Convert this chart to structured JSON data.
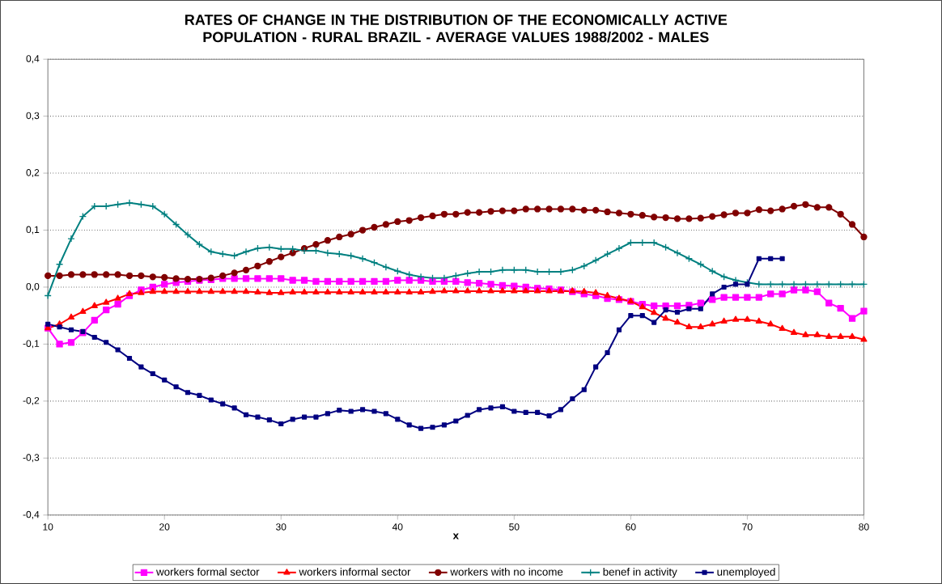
{
  "chart_data": {
    "type": "line",
    "title": "RATES OF CHANGE IN THE DISTRIBUTION OF THE ECONOMICALLY ACTIVE POPULATION - RURAL BRAZIL -  AVERAGE VALUES 1988/2002 - MALES",
    "xlabel": "x",
    "x": [
      10,
      11,
      12,
      13,
      14,
      15,
      16,
      17,
      18,
      19,
      20,
      21,
      22,
      23,
      24,
      25,
      26,
      27,
      28,
      29,
      30,
      31,
      32,
      33,
      34,
      35,
      36,
      37,
      38,
      39,
      40,
      41,
      42,
      43,
      44,
      45,
      46,
      47,
      48,
      49,
      50,
      51,
      52,
      53,
      54,
      55,
      56,
      57,
      58,
      59,
      60,
      61,
      62,
      63,
      64,
      65,
      66,
      67,
      68,
      69,
      70,
      71,
      72,
      73,
      74,
      75,
      76,
      77,
      78,
      79,
      80
    ],
    "xlim": [
      10,
      80
    ],
    "xticks": [
      10,
      20,
      30,
      40,
      50,
      60,
      70,
      80
    ],
    "ylim": [
      -0.4,
      0.4
    ],
    "yticks": [
      {
        "value": -0.4,
        "label": "-0,4"
      },
      {
        "value": -0.3,
        "label": "-0,3"
      },
      {
        "value": -0.2,
        "label": "-0,2"
      },
      {
        "value": -0.1,
        "label": "-0,1"
      },
      {
        "value": 0,
        "label": "0,0"
      },
      {
        "value": 0.1,
        "label": "0,1"
      },
      {
        "value": 0.2,
        "label": "0,2"
      },
      {
        "value": 0.3,
        "label": "0,3"
      },
      {
        "value": 0.4,
        "label": "0,4"
      }
    ],
    "grid": "y",
    "legend": "bottom",
    "series": [
      {
        "name": "workers formal sector",
        "color": "#ff00ff",
        "marker": "square",
        "values": [
          -0.072,
          -0.1,
          -0.097,
          -0.08,
          -0.058,
          -0.04,
          -0.03,
          -0.015,
          -0.005,
          0.0,
          0.005,
          0.008,
          0.01,
          0.012,
          0.013,
          0.015,
          0.015,
          0.015,
          0.015,
          0.015,
          0.015,
          0.012,
          0.012,
          0.01,
          0.01,
          0.01,
          0.01,
          0.01,
          0.01,
          0.01,
          0.012,
          0.012,
          0.012,
          0.01,
          0.01,
          0.01,
          0.008,
          0.007,
          0.005,
          0.003,
          0.002,
          0.0,
          -0.002,
          -0.003,
          -0.005,
          -0.008,
          -0.012,
          -0.015,
          -0.02,
          -0.022,
          -0.025,
          -0.03,
          -0.033,
          -0.033,
          -0.033,
          -0.032,
          -0.028,
          -0.022,
          -0.018,
          -0.018,
          -0.018,
          -0.018,
          -0.012,
          -0.012,
          -0.005,
          -0.005,
          -0.008,
          -0.028,
          -0.037,
          -0.055,
          -0.042
        ]
      },
      {
        "name": "workers informal sector",
        "color": "#ff0000",
        "marker": "triangle",
        "values": [
          -0.072,
          -0.065,
          -0.053,
          -0.043,
          -0.033,
          -0.027,
          -0.02,
          -0.012,
          -0.01,
          -0.008,
          -0.008,
          -0.008,
          -0.008,
          -0.008,
          -0.008,
          -0.008,
          -0.008,
          -0.008,
          -0.009,
          -0.01,
          -0.01,
          -0.009,
          -0.009,
          -0.009,
          -0.009,
          -0.009,
          -0.009,
          -0.009,
          -0.009,
          -0.009,
          -0.009,
          -0.009,
          -0.009,
          -0.008,
          -0.007,
          -0.007,
          -0.007,
          -0.007,
          -0.007,
          -0.007,
          -0.007,
          -0.007,
          -0.007,
          -0.007,
          -0.007,
          -0.007,
          -0.008,
          -0.01,
          -0.015,
          -0.02,
          -0.025,
          -0.035,
          -0.045,
          -0.055,
          -0.062,
          -0.07,
          -0.07,
          -0.065,
          -0.06,
          -0.057,
          -0.057,
          -0.06,
          -0.065,
          -0.073,
          -0.08,
          -0.084,
          -0.084,
          -0.087,
          -0.087,
          -0.087,
          -0.092
        ]
      },
      {
        "name": "workers with no income",
        "color": "#800000",
        "marker": "circle",
        "values": [
          0.02,
          0.02,
          0.022,
          0.022,
          0.022,
          0.022,
          0.022,
          0.02,
          0.02,
          0.018,
          0.017,
          0.015,
          0.014,
          0.014,
          0.016,
          0.02,
          0.025,
          0.03,
          0.037,
          0.045,
          0.053,
          0.06,
          0.068,
          0.075,
          0.082,
          0.088,
          0.093,
          0.1,
          0.105,
          0.11,
          0.115,
          0.117,
          0.122,
          0.125,
          0.128,
          0.128,
          0.131,
          0.131,
          0.133,
          0.134,
          0.134,
          0.137,
          0.137,
          0.137,
          0.137,
          0.137,
          0.135,
          0.135,
          0.132,
          0.13,
          0.128,
          0.126,
          0.123,
          0.122,
          0.12,
          0.12,
          0.121,
          0.124,
          0.127,
          0.13,
          0.13,
          0.136,
          0.134,
          0.137,
          0.142,
          0.145,
          0.14,
          0.14,
          0.128,
          0.11,
          0.088
        ]
      },
      {
        "name": "benef in activity",
        "color": "#008080",
        "marker": "cross",
        "values": [
          -0.015,
          0.04,
          0.085,
          0.124,
          0.142,
          0.142,
          0.145,
          0.148,
          0.145,
          0.142,
          0.128,
          0.11,
          0.092,
          0.075,
          0.062,
          0.058,
          0.055,
          0.062,
          0.068,
          0.07,
          0.067,
          0.067,
          0.064,
          0.064,
          0.06,
          0.058,
          0.055,
          0.05,
          0.043,
          0.035,
          0.028,
          0.022,
          0.018,
          0.016,
          0.016,
          0.02,
          0.024,
          0.027,
          0.027,
          0.03,
          0.03,
          0.03,
          0.027,
          0.027,
          0.027,
          0.03,
          0.037,
          0.047,
          0.058,
          0.068,
          0.078,
          0.078,
          0.078,
          0.07,
          0.06,
          0.05,
          0.04,
          0.028,
          0.018,
          0.012,
          0.008,
          0.005,
          0.005,
          0.005,
          0.005,
          0.005,
          0.005,
          0.005,
          0.005,
          0.005,
          0.005
        ]
      },
      {
        "name": "unemployed",
        "color": "#000080",
        "marker": "square",
        "values": [
          -0.065,
          -0.07,
          -0.075,
          -0.078,
          -0.088,
          -0.097,
          -0.11,
          -0.125,
          -0.14,
          -0.152,
          -0.163,
          -0.175,
          -0.185,
          -0.19,
          -0.198,
          -0.205,
          -0.212,
          -0.224,
          -0.228,
          -0.233,
          -0.24,
          -0.232,
          -0.228,
          -0.228,
          -0.222,
          -0.216,
          -0.218,
          -0.215,
          -0.218,
          -0.222,
          -0.232,
          -0.242,
          -0.248,
          -0.246,
          -0.242,
          -0.235,
          -0.225,
          -0.215,
          -0.212,
          -0.21,
          -0.218,
          -0.22,
          -0.22,
          -0.226,
          -0.215,
          -0.196,
          -0.18,
          -0.14,
          -0.115,
          -0.075,
          -0.05,
          -0.05,
          -0.062,
          -0.04,
          -0.044,
          -0.038,
          -0.038,
          -0.012,
          0.0,
          0.005,
          0.005,
          0.05,
          0.05,
          0.05,
          null,
          null,
          null,
          null,
          null,
          null,
          null
        ]
      }
    ]
  }
}
